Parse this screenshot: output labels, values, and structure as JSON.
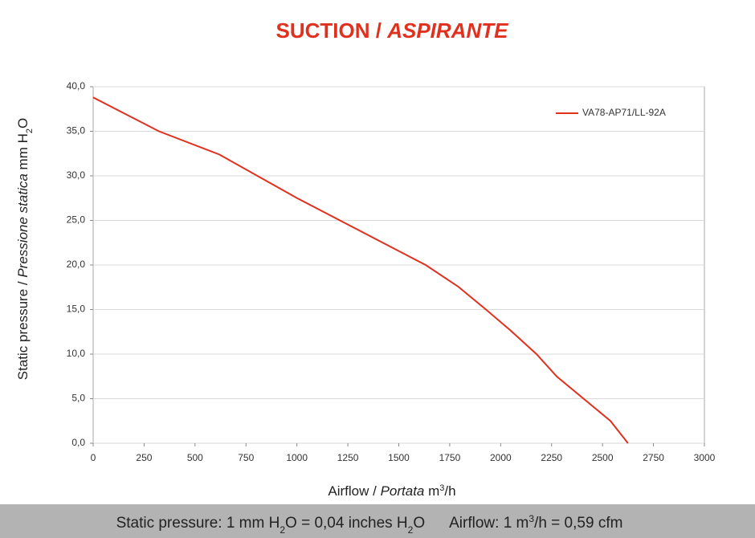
{
  "chart_data": {
    "type": "line",
    "title": [
      "SUCTION /",
      "ASPIRANTE"
    ],
    "x_label": [
      "Airflow /",
      "Portata",
      "m",
      "3",
      "/h"
    ],
    "y_label": [
      "Static pressure /",
      "Pressione statica",
      "mm H",
      "2",
      "O"
    ],
    "footer": [
      "Static pressure: 1 mm H",
      "2",
      "O = 0,04 inches H",
      "2",
      "O",
      "Airflow: 1 m",
      "3",
      "/h = 0,59 cfm"
    ],
    "x": [
      0,
      323,
      619,
      1001,
      1632,
      1790,
      1928,
      2046,
      2176,
      2275,
      2539,
      2625
    ],
    "series": [
      {
        "name": "VA78-AP71/LL-92A",
        "color": "#e0301e",
        "values": [
          38.8,
          35.0,
          32.4,
          27.5,
          20.0,
          17.6,
          15.0,
          12.7,
          10.0,
          7.5,
          2.5,
          0
        ]
      }
    ],
    "xlim": [
      0,
      3000
    ],
    "xticks": [
      0,
      250,
      500,
      750,
      1000,
      1250,
      1500,
      1750,
      2000,
      2250,
      2500,
      2750,
      3000
    ],
    "ylim": [
      0,
      40
    ],
    "yticks": [
      {
        "value": 0,
        "label": "0,0"
      },
      {
        "value": 5,
        "label": "5,0"
      },
      {
        "value": 10,
        "label": "10,0"
      },
      {
        "value": 15,
        "label": "15,0"
      },
      {
        "value": 20,
        "label": "20,0"
      },
      {
        "value": 25,
        "label": "25,0"
      },
      {
        "value": 30,
        "label": "30,0"
      },
      {
        "value": 35,
        "label": "35,0"
      },
      {
        "value": 40,
        "label": "40,0"
      }
    ],
    "grid": true,
    "legend": "top-right"
  }
}
